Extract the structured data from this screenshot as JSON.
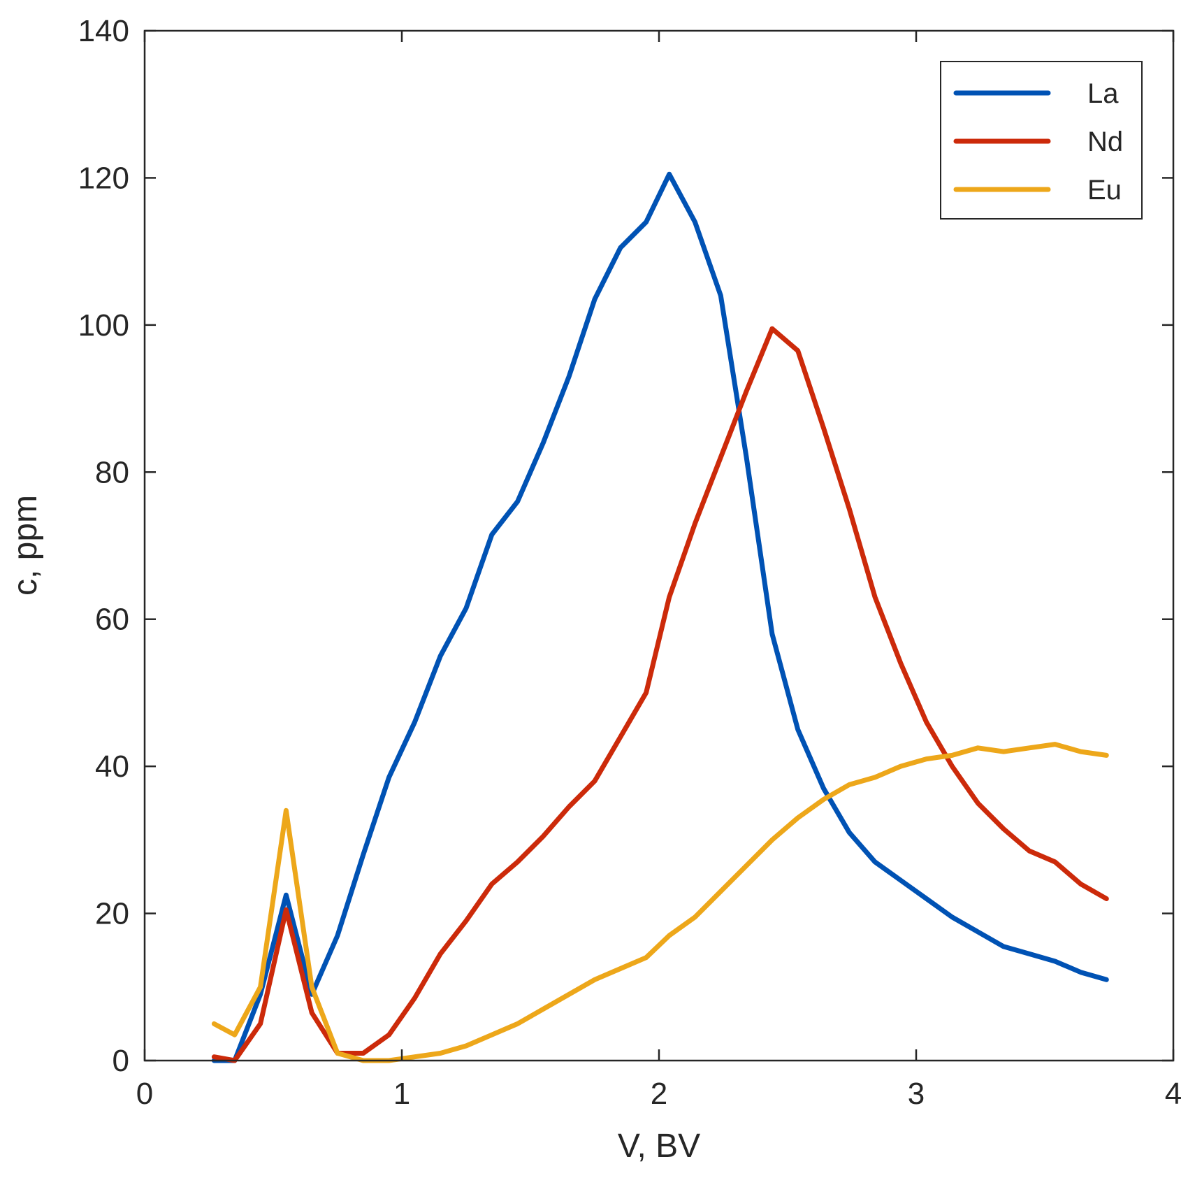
{
  "chart_data": {
    "type": "line",
    "title": "",
    "xlabel": "V, BV",
    "ylabel": "c, ppm",
    "xlim": [
      0,
      4
    ],
    "ylim": [
      0,
      140
    ],
    "xticks": [
      0,
      1,
      2,
      3,
      4
    ],
    "yticks": [
      0,
      20,
      40,
      60,
      80,
      100,
      120,
      140
    ],
    "grid": false,
    "legend_position": "top-right",
    "series": [
      {
        "name": "La",
        "color": "#0052b4",
        "x": [
          0.27,
          0.35,
          0.45,
          0.55,
          0.65,
          0.75,
          0.85,
          0.95,
          1.05,
          1.15,
          1.25,
          1.35,
          1.45,
          1.55,
          1.65,
          1.75,
          1.85,
          1.95,
          2.04,
          2.14,
          2.24,
          2.34,
          2.44,
          2.54,
          2.64,
          2.74,
          2.84,
          2.94,
          3.04,
          3.14,
          3.24,
          3.34,
          3.44,
          3.54,
          3.64,
          3.74
        ],
        "values": [
          0,
          0,
          9,
          22.5,
          9,
          17,
          28,
          38.5,
          46,
          55,
          61.5,
          71.5,
          76,
          84,
          93,
          103.5,
          110.5,
          114,
          120.5,
          114,
          104,
          82,
          58,
          45,
          37,
          31,
          27,
          24.5,
          22,
          19.5,
          17.5,
          15.5,
          14.5,
          13.5,
          12,
          11
        ]
      },
      {
        "name": "Nd",
        "color": "#cc2a0a",
        "x": [
          0.27,
          0.35,
          0.45,
          0.55,
          0.65,
          0.75,
          0.85,
          0.95,
          1.05,
          1.15,
          1.25,
          1.35,
          1.45,
          1.55,
          1.65,
          1.75,
          1.85,
          1.95,
          2.04,
          2.14,
          2.24,
          2.34,
          2.44,
          2.54,
          2.64,
          2.74,
          2.84,
          2.94,
          3.04,
          3.14,
          3.24,
          3.34,
          3.44,
          3.54,
          3.64,
          3.74
        ],
        "values": [
          0.5,
          0,
          5,
          20.5,
          6.5,
          1,
          1,
          3.5,
          8.5,
          14.5,
          19,
          24,
          27,
          30.5,
          34.5,
          38,
          44,
          50,
          63,
          73,
          82,
          91,
          99.5,
          96.5,
          86,
          75,
          63,
          54,
          46,
          40,
          35,
          31.5,
          28.5,
          27,
          24,
          22
        ]
      },
      {
        "name": "Eu",
        "color": "#eda71a",
        "x": [
          0.27,
          0.35,
          0.45,
          0.55,
          0.65,
          0.75,
          0.85,
          0.95,
          1.05,
          1.15,
          1.25,
          1.35,
          1.45,
          1.55,
          1.65,
          1.75,
          1.85,
          1.95,
          2.04,
          2.14,
          2.24,
          2.34,
          2.44,
          2.54,
          2.64,
          2.74,
          2.84,
          2.94,
          3.04,
          3.14,
          3.24,
          3.34,
          3.44,
          3.54,
          3.64,
          3.74
        ],
        "values": [
          5,
          3.5,
          10,
          34,
          10,
          1,
          0,
          0,
          0.5,
          1,
          2,
          3.5,
          5,
          7,
          9,
          11,
          12.5,
          14,
          17,
          19.5,
          23,
          26.5,
          30,
          33,
          35.5,
          37.5,
          38.5,
          40,
          41,
          41.5,
          42.5,
          42,
          42.5,
          43,
          42,
          41.5
        ]
      }
    ]
  }
}
